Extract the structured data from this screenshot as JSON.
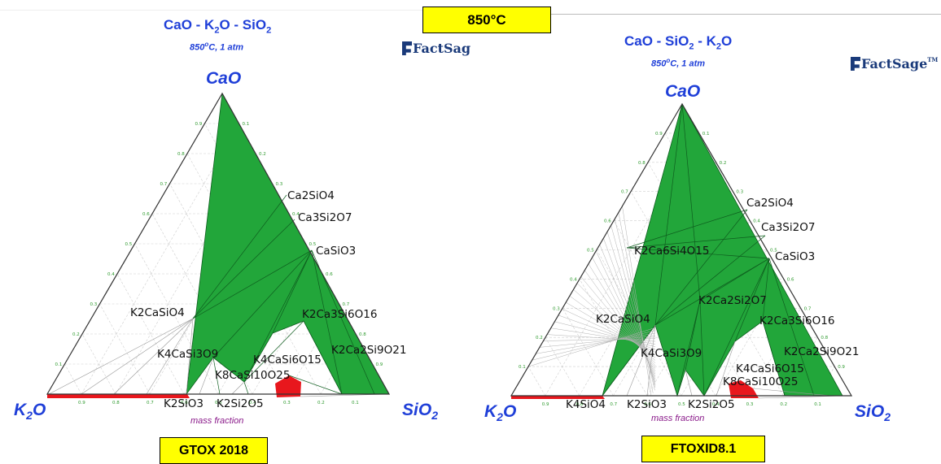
{
  "header": {
    "temperature_label": "850°C"
  },
  "diagrams": [
    {
      "title_parts": [
        "CaO - K",
        "2",
        "O - SiO",
        "2"
      ],
      "subtitle_temp": "850",
      "subtitle_unit": "o",
      "subtitle_rest": "C, 1 atm",
      "top_vertex": "CaO",
      "left_vertex": [
        "K",
        "2",
        "O"
      ],
      "right_vertex": [
        "SiO",
        "2"
      ],
      "axis_title": "mass fraction",
      "logo": "FactSag",
      "database_label": "GTOX 2018",
      "phases": [
        "Ca2SiO4",
        "Ca3Si2O7",
        "CaSiO3",
        "K2CaSiO4",
        "K2Ca3Si6O16",
        "K4CaSi3O9",
        "K4CaSi6O15",
        "K2Ca2Si9O21",
        "K8CaSi10O25",
        "K2SiO3",
        "K2Si2O5"
      ],
      "colors": {
        "single_phase_field": "#22a63a",
        "liquid_field": "#e8171d"
      }
    },
    {
      "title_parts": [
        "CaO - SiO",
        "2",
        " - K",
        "2",
        "O"
      ],
      "subtitle_temp": "850",
      "subtitle_unit": "o",
      "subtitle_rest": "C, 1 atm",
      "top_vertex": "CaO",
      "left_vertex": [
        "K",
        "2",
        "O"
      ],
      "right_vertex": [
        "SiO",
        "2"
      ],
      "axis_title": "mass fraction",
      "logo": "FactSage",
      "logo_tm": "TM",
      "database_label": "FTOXID8.1",
      "phases": [
        "Ca2SiO4",
        "Ca3Si2O7",
        "K2Ca6Si4O15",
        "CaSiO3",
        "K2Ca2Si2O7",
        "K2CaSiO4",
        "K2Ca3Si6O16",
        "K4CaSi3O9",
        "K2Ca2Si9O21",
        "K4CaSi6O15",
        "K8CaSi10O25",
        "K4SiO4",
        "K2SiO3",
        "K2Si2O5"
      ],
      "colors": {
        "single_phase_field": "#22a63a",
        "liquid_field": "#e8171d"
      }
    }
  ]
}
